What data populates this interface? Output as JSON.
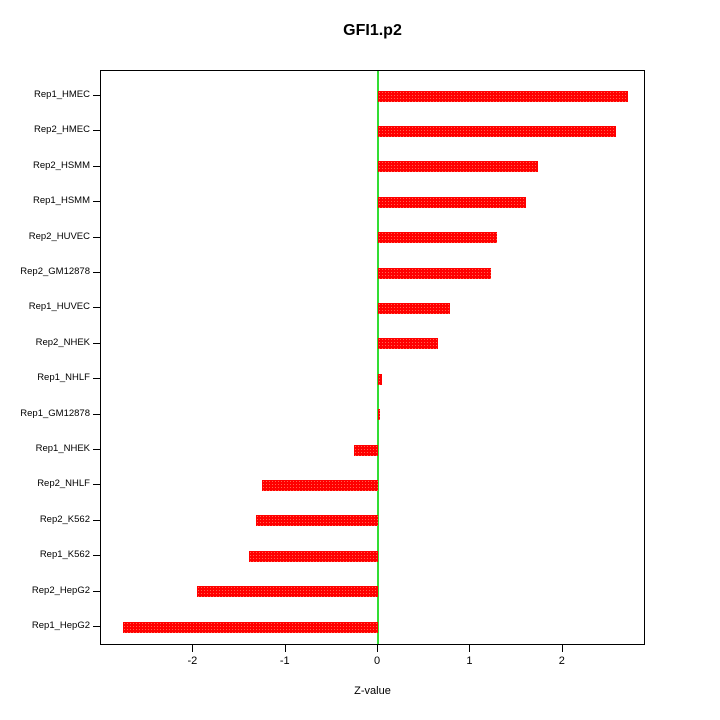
{
  "title": "GFI1.p2",
  "chart_data": {
    "type": "bar",
    "orientation": "horizontal",
    "title": "GFI1.p2",
    "xlabel": "Z-value",
    "ylabel": "",
    "categories_top_to_bottom": [
      "Rep1_HMEC",
      "Rep2_HMEC",
      "Rep2_HSMM",
      "Rep1_HSMM",
      "Rep2_HUVEC",
      "Rep2_GM12878",
      "Rep1_HUVEC",
      "Rep2_NHEK",
      "Rep1_NHLF",
      "Rep1_GM12878",
      "Rep1_NHEK",
      "Rep2_NHLF",
      "Rep2_K562",
      "Rep1_K562",
      "Rep2_HepG2",
      "Rep1_HepG2"
    ],
    "values": [
      2.7,
      2.57,
      1.73,
      1.6,
      1.29,
      1.22,
      0.78,
      0.65,
      0.04,
      0.01,
      -0.26,
      -1.26,
      -1.32,
      -1.4,
      -1.96,
      -2.76
    ],
    "xlim": [
      -3.0,
      2.9
    ],
    "x_ticks": [
      -2,
      -1,
      0,
      1,
      2
    ],
    "grid": false,
    "legend": "none",
    "colors": {
      "bar": "#ff0000",
      "bar_texture_dot": "rgba(255,180,140,0.55)",
      "zero_line": "#33dd33",
      "plot_border": "#000000",
      "text": "#000000"
    }
  }
}
